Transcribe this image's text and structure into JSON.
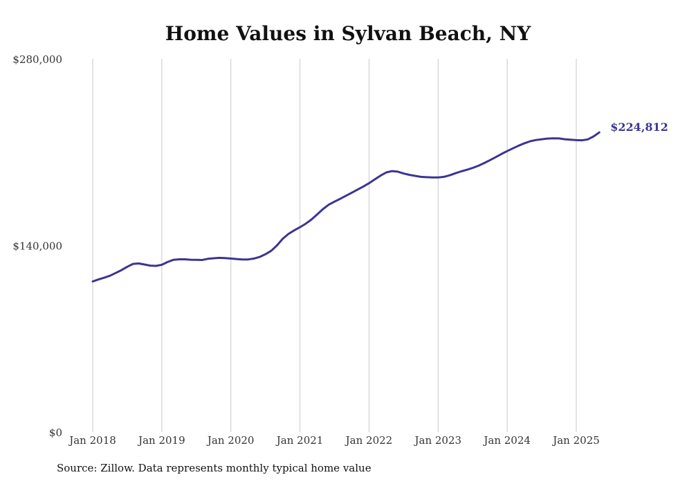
{
  "chart_data": {
    "type": "line",
    "title": "Home Values in Sylvan Beach, NY",
    "source": "Source: Zillow. Data represents monthly typical home value",
    "xlabel": "",
    "ylabel": "",
    "ylim": [
      0,
      280000
    ],
    "yticks": [
      {
        "value": 0,
        "label": "$0"
      },
      {
        "value": 140000,
        "label": "$140,000"
      },
      {
        "value": 280000,
        "label": "$280,000"
      }
    ],
    "xticks": [
      "Jan 2018",
      "Jan 2019",
      "Jan 2020",
      "Jan 2021",
      "Jan 2022",
      "Jan 2023",
      "Jan 2024",
      "Jan 2025"
    ],
    "grid": "vertical",
    "color": "#3a3592",
    "end_label": "$224,812",
    "series": [
      {
        "values": [
          {
            "x": "2018-01",
            "y": 113000
          },
          {
            "x": "2018-02",
            "y": 114500
          },
          {
            "x": "2018-03",
            "y": 115800
          },
          {
            "x": "2018-04",
            "y": 117300
          },
          {
            "x": "2018-05",
            "y": 119400
          },
          {
            "x": "2018-06",
            "y": 121500
          },
          {
            "x": "2018-07",
            "y": 124000
          },
          {
            "x": "2018-08",
            "y": 126200
          },
          {
            "x": "2018-09",
            "y": 126500
          },
          {
            "x": "2018-10",
            "y": 125700
          },
          {
            "x": "2018-11",
            "y": 124900
          },
          {
            "x": "2018-12",
            "y": 124700
          },
          {
            "x": "2019-01",
            "y": 125500
          },
          {
            "x": "2019-02",
            "y": 127600
          },
          {
            "x": "2019-03",
            "y": 129200
          },
          {
            "x": "2019-04",
            "y": 129600
          },
          {
            "x": "2019-05",
            "y": 129600
          },
          {
            "x": "2019-06",
            "y": 129300
          },
          {
            "x": "2019-07",
            "y": 129200
          },
          {
            "x": "2019-08",
            "y": 129100
          },
          {
            "x": "2019-09",
            "y": 130000
          },
          {
            "x": "2019-10",
            "y": 130400
          },
          {
            "x": "2019-11",
            "y": 130700
          },
          {
            "x": "2019-12",
            "y": 130500
          },
          {
            "x": "2020-01",
            "y": 130200
          },
          {
            "x": "2020-02",
            "y": 129800
          },
          {
            "x": "2020-03",
            "y": 129500
          },
          {
            "x": "2020-04",
            "y": 129500
          },
          {
            "x": "2020-05",
            "y": 130200
          },
          {
            "x": "2020-06",
            "y": 131400
          },
          {
            "x": "2020-07",
            "y": 133400
          },
          {
            "x": "2020-08",
            "y": 136000
          },
          {
            "x": "2020-09",
            "y": 140000
          },
          {
            "x": "2020-10",
            "y": 145000
          },
          {
            "x": "2020-11",
            "y": 148600
          },
          {
            "x": "2020-12",
            "y": 151300
          },
          {
            "x": "2021-01",
            "y": 153700
          },
          {
            "x": "2021-02",
            "y": 156300
          },
          {
            "x": "2021-03",
            "y": 159500
          },
          {
            "x": "2021-04",
            "y": 163300
          },
          {
            "x": "2021-05",
            "y": 167300
          },
          {
            "x": "2021-06",
            "y": 170600
          },
          {
            "x": "2021-07",
            "y": 172900
          },
          {
            "x": "2021-08",
            "y": 175000
          },
          {
            "x": "2021-09",
            "y": 177300
          },
          {
            "x": "2021-10",
            "y": 179600
          },
          {
            "x": "2021-11",
            "y": 181900
          },
          {
            "x": "2021-12",
            "y": 184200
          },
          {
            "x": "2022-01",
            "y": 186700
          },
          {
            "x": "2022-02",
            "y": 189600
          },
          {
            "x": "2022-03",
            "y": 192400
          },
          {
            "x": "2022-04",
            "y": 194800
          },
          {
            "x": "2022-05",
            "y": 195800
          },
          {
            "x": "2022-06",
            "y": 195400
          },
          {
            "x": "2022-07",
            "y": 194000
          },
          {
            "x": "2022-08",
            "y": 193000
          },
          {
            "x": "2022-09",
            "y": 192200
          },
          {
            "x": "2022-10",
            "y": 191500
          },
          {
            "x": "2022-11",
            "y": 191200
          },
          {
            "x": "2022-12",
            "y": 191000
          },
          {
            "x": "2023-01",
            "y": 191000
          },
          {
            "x": "2023-02",
            "y": 191500
          },
          {
            "x": "2023-03",
            "y": 192600
          },
          {
            "x": "2023-04",
            "y": 194200
          },
          {
            "x": "2023-05",
            "y": 195600
          },
          {
            "x": "2023-06",
            "y": 196800
          },
          {
            "x": "2023-07",
            "y": 198200
          },
          {
            "x": "2023-08",
            "y": 199800
          },
          {
            "x": "2023-09",
            "y": 201800
          },
          {
            "x": "2023-10",
            "y": 204000
          },
          {
            "x": "2023-11",
            "y": 206300
          },
          {
            "x": "2023-12",
            "y": 208600
          },
          {
            "x": "2024-01",
            "y": 210800
          },
          {
            "x": "2024-02",
            "y": 212900
          },
          {
            "x": "2024-03",
            "y": 214900
          },
          {
            "x": "2024-04",
            "y": 216700
          },
          {
            "x": "2024-05",
            "y": 218200
          },
          {
            "x": "2024-06",
            "y": 219100
          },
          {
            "x": "2024-07",
            "y": 219700
          },
          {
            "x": "2024-08",
            "y": 220200
          },
          {
            "x": "2024-09",
            "y": 220400
          },
          {
            "x": "2024-10",
            "y": 220300
          },
          {
            "x": "2024-11",
            "y": 219700
          },
          {
            "x": "2024-12",
            "y": 219300
          },
          {
            "x": "2025-01",
            "y": 219000
          },
          {
            "x": "2025-02",
            "y": 218900
          },
          {
            "x": "2025-03",
            "y": 219600
          },
          {
            "x": "2025-04",
            "y": 221800
          },
          {
            "x": "2025-05",
            "y": 224812
          }
        ]
      }
    ]
  }
}
